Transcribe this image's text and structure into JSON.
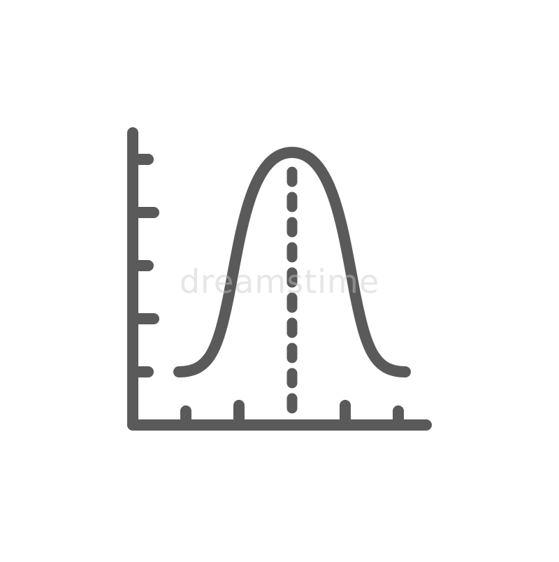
{
  "icon": {
    "name": "normal-distribution-bell-curve-icon",
    "stroke_color": "#5a5a5a",
    "background_color": "#ffffff"
  },
  "watermark": {
    "text": "dreamstime"
  }
}
